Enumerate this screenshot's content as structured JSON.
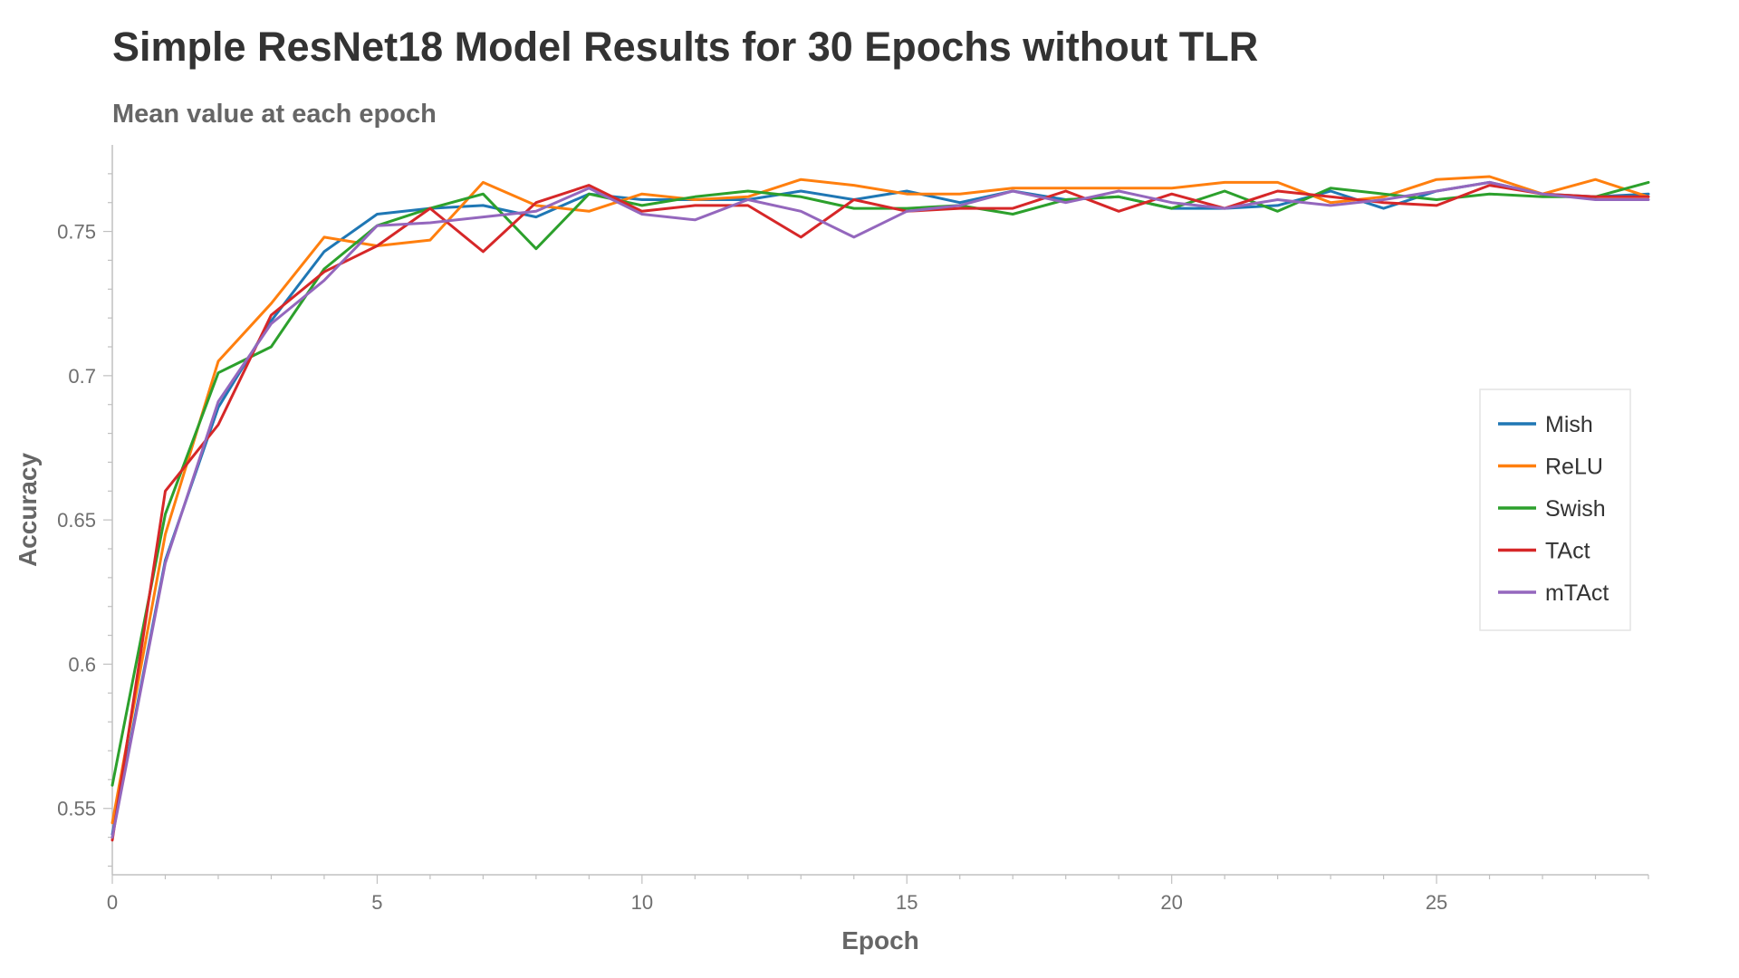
{
  "title": "Simple ResNet18 Model Results for 30 Epochs without TLR",
  "subtitle": "Mean value at each epoch",
  "chart_data": {
    "type": "line",
    "title": "Simple ResNet18 Model Results for 30 Epochs without TLR",
    "subtitle": "Mean value at each epoch",
    "xlabel": "Epoch",
    "ylabel": "Accuracy",
    "xlim": [
      0,
      29
    ],
    "ylim": [
      0.527,
      0.78
    ],
    "xticks": [
      0,
      5,
      10,
      15,
      20,
      25
    ],
    "yticks": [
      0.55,
      0.6,
      0.65,
      0.7,
      0.75
    ],
    "xtick_labels": [
      "0",
      "5",
      "10",
      "15",
      "20",
      "25"
    ],
    "ytick_labels": [
      "0.55",
      "0.6",
      "0.65",
      "0.7",
      "0.75"
    ],
    "legend_position": "right",
    "grid": false,
    "x": [
      0,
      1,
      2,
      3,
      4,
      5,
      6,
      7,
      8,
      9,
      10,
      11,
      12,
      13,
      14,
      15,
      16,
      17,
      18,
      19,
      20,
      21,
      22,
      23,
      24,
      25,
      26,
      27,
      28,
      29
    ],
    "series": [
      {
        "name": "Mish",
        "color": "#1f77b4",
        "values": [
          0.541,
          0.636,
          0.689,
          0.719,
          0.743,
          0.756,
          0.758,
          0.759,
          0.755,
          0.763,
          0.761,
          0.761,
          0.761,
          0.764,
          0.761,
          0.764,
          0.76,
          0.764,
          0.761,
          0.762,
          0.758,
          0.758,
          0.759,
          0.764,
          0.758,
          0.764,
          0.767,
          0.763,
          0.762,
          0.763
        ]
      },
      {
        "name": "ReLU",
        "color": "#ff7f0e",
        "values": [
          0.545,
          0.645,
          0.705,
          0.725,
          0.748,
          0.745,
          0.747,
          0.767,
          0.759,
          0.757,
          0.763,
          0.761,
          0.762,
          0.768,
          0.766,
          0.763,
          0.763,
          0.765,
          0.765,
          0.765,
          0.765,
          0.767,
          0.767,
          0.76,
          0.762,
          0.768,
          0.769,
          0.763,
          0.768,
          0.762
        ]
      },
      {
        "name": "Swish",
        "color": "#2ca02c",
        "values": [
          0.558,
          0.652,
          0.701,
          0.71,
          0.737,
          0.752,
          0.758,
          0.763,
          0.744,
          0.763,
          0.759,
          0.762,
          0.764,
          0.762,
          0.758,
          0.758,
          0.759,
          0.756,
          0.761,
          0.762,
          0.758,
          0.764,
          0.757,
          0.765,
          0.763,
          0.761,
          0.763,
          0.762,
          0.762,
          0.767
        ]
      },
      {
        "name": "TAct",
        "color": "#d62728",
        "values": [
          0.539,
          0.66,
          0.683,
          0.721,
          0.736,
          0.745,
          0.758,
          0.743,
          0.76,
          0.766,
          0.757,
          0.759,
          0.759,
          0.748,
          0.761,
          0.757,
          0.758,
          0.758,
          0.764,
          0.757,
          0.763,
          0.758,
          0.764,
          0.762,
          0.76,
          0.759,
          0.766,
          0.763,
          0.762,
          0.762
        ]
      },
      {
        "name": "mTAct",
        "color": "#9467bd",
        "values": [
          0.54,
          0.635,
          0.691,
          0.718,
          0.733,
          0.752,
          0.753,
          0.755,
          0.757,
          0.765,
          0.756,
          0.754,
          0.761,
          0.757,
          0.748,
          0.757,
          0.759,
          0.764,
          0.76,
          0.764,
          0.76,
          0.758,
          0.761,
          0.759,
          0.761,
          0.764,
          0.767,
          0.763,
          0.761,
          0.761
        ]
      }
    ]
  }
}
